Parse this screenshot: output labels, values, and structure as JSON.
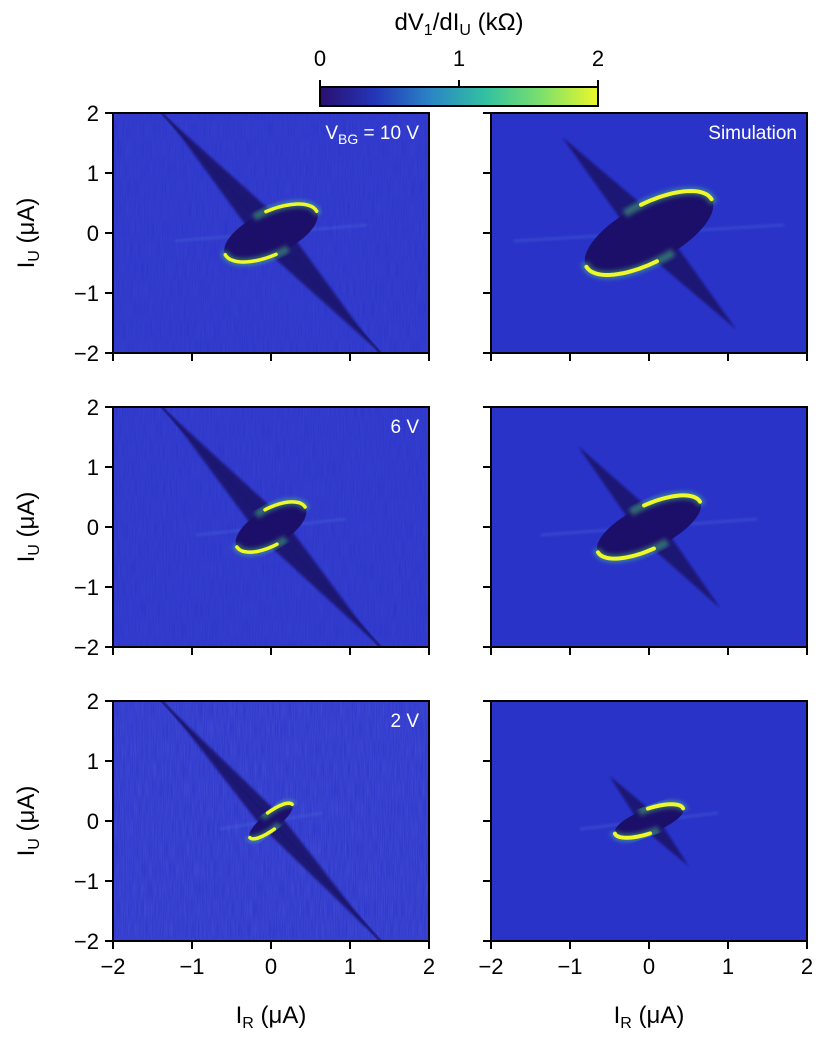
{
  "colors": {
    "background": "#2a33c8",
    "core": "#1c0f6a",
    "streak": "#1b1770",
    "edge_bright": "#eef82a",
    "edge_green": "#4fd37a",
    "colormap_stops": [
      "#2a0f70",
      "#2436b8",
      "#2a86c4",
      "#33c2a0",
      "#7ee06a",
      "#ecf72a"
    ]
  },
  "chart_data": [
    {
      "type": "colorbar",
      "title": "dV",
      "title_sub1": "1",
      "title_mid": "/dI",
      "title_sub2": "U",
      "title_unit": " (kΩ)",
      "range": [
        0,
        2
      ],
      "ticks": [
        "0",
        "1",
        "2"
      ]
    },
    {
      "type": "heatmap",
      "panel": "measurement",
      "vbg_volts": 10,
      "label_main": "V",
      "label_sub": "BG",
      "label_rest": " = 10 V",
      "xlim": [
        -2,
        2
      ],
      "ylim": [
        -2,
        2
      ],
      "ylabel_main": "I",
      "ylabel_sub": "U",
      "ylabel_unit": " (μA)",
      "x_ticks": [],
      "y_ticks": [
        "2",
        "1",
        "0",
        "−1",
        "−2"
      ],
      "pocket": {
        "rx": 0.64,
        "ry": 0.36,
        "tilt_deg": -25,
        "tail_dx": 1.3,
        "tail_dy": 1.9
      }
    },
    {
      "type": "heatmap",
      "panel": "simulation",
      "vbg_volts": 10,
      "label_main": "Simulation",
      "xlim": [
        -2,
        2
      ],
      "ylim": [
        -2,
        2
      ],
      "x_ticks": [],
      "y_ticks": [],
      "pocket": {
        "rx": 0.9,
        "ry": 0.48,
        "tilt_deg": -28,
        "tail_dx": 1.1,
        "tail_dy": 1.6
      }
    },
    {
      "type": "heatmap",
      "panel": "measurement",
      "vbg_volts": 6,
      "label_main": "6 V",
      "xlim": [
        -2,
        2
      ],
      "ylim": [
        -2,
        2
      ],
      "ylabel_main": "I",
      "ylabel_sub": "U",
      "ylabel_unit": " (μA)",
      "x_ticks": [],
      "y_ticks": [
        "2",
        "1",
        "0",
        "−1",
        "−2"
      ],
      "pocket": {
        "rx": 0.5,
        "ry": 0.3,
        "tilt_deg": -30,
        "tail_dx": 1.3,
        "tail_dy": 1.9
      }
    },
    {
      "type": "heatmap",
      "panel": "simulation",
      "vbg_volts": 6,
      "label_main": "",
      "xlim": [
        -2,
        2
      ],
      "ylim": [
        -2,
        2
      ],
      "x_ticks": [],
      "y_ticks": [],
      "pocket": {
        "rx": 0.72,
        "ry": 0.36,
        "tilt_deg": -26,
        "tail_dx": 0.9,
        "tail_dy": 1.35
      }
    },
    {
      "type": "heatmap",
      "panel": "measurement",
      "vbg_volts": 2,
      "label_main": "2 V",
      "xlim": [
        -2,
        2
      ],
      "ylim": [
        -2,
        2
      ],
      "ylabel_main": "I",
      "ylabel_sub": "U",
      "ylabel_unit": " (μA)",
      "xlabel_main": "I",
      "xlabel_sub": "R",
      "xlabel_unit": " (μA)",
      "x_ticks": [
        "−2",
        "−1",
        "0",
        "1",
        "2"
      ],
      "y_ticks": [
        "2",
        "1",
        "0",
        "−1",
        "−2"
      ],
      "pocket": {
        "rx": 0.34,
        "ry": 0.14,
        "tilt_deg": -38,
        "tail_dx": 1.3,
        "tail_dy": 1.9
      }
    },
    {
      "type": "heatmap",
      "panel": "simulation",
      "vbg_volts": 2,
      "label_main": "",
      "xlim": [
        -2,
        2
      ],
      "ylim": [
        -2,
        2
      ],
      "xlabel_main": "I",
      "xlabel_sub": "R",
      "xlabel_unit": " (μA)",
      "x_ticks": [
        "−2",
        "−1",
        "0",
        "1",
        "2"
      ],
      "y_ticks": [],
      "pocket": {
        "rx": 0.46,
        "ry": 0.2,
        "tilt_deg": -20,
        "tail_dx": 0.5,
        "tail_dy": 0.75
      }
    }
  ]
}
